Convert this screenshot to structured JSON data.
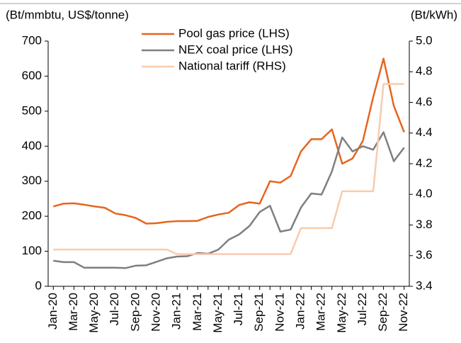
{
  "chart_data": {
    "type": "line",
    "y_label": "(Bt/mmbtu, US$/tonne)",
    "y2_label": "(Bt/kWh)",
    "categories": [
      "Jan-20",
      null,
      "Mar-20",
      null,
      "May-20",
      null,
      "Jul-20",
      null,
      "Sep-20",
      null,
      "Nov-20",
      null,
      "Jan-21",
      null,
      "Mar-21",
      null,
      "May-21",
      null,
      "Jul-21",
      null,
      "Sep-21",
      null,
      "Nov-21",
      null,
      "Jan-22",
      null,
      "Mar-22",
      null,
      "May-22",
      null,
      "Jul-22",
      null,
      "Sep-22",
      null,
      "Nov-22"
    ],
    "series": [
      {
        "name": "Pool gas price (LHS)",
        "color": "#e8641e",
        "axis": "y",
        "values": [
          228,
          236,
          237,
          233,
          228,
          224,
          208,
          203,
          195,
          179,
          180,
          184,
          186,
          186,
          187,
          198,
          205,
          210,
          232,
          240,
          236,
          300,
          296,
          315,
          385,
          420,
          420,
          448,
          350,
          365,
          415,
          540,
          650,
          515,
          440
        ]
      },
      {
        "name": "NEX coal price  (LHS)",
        "color": "#7f7f7f",
        "axis": "y",
        "values": [
          73,
          69,
          69,
          53,
          53,
          53,
          53,
          52,
          59,
          60,
          70,
          80,
          85,
          86,
          95,
          93,
          105,
          133,
          148,
          172,
          212,
          230,
          156,
          162,
          225,
          265,
          262,
          328,
          425,
          385,
          400,
          390,
          440,
          357,
          396
        ]
      },
      {
        "name": "National tariff  (RHS)",
        "color": "#f8cbad",
        "axis": "y2",
        "values": [
          3.64,
          3.64,
          3.64,
          3.64,
          3.64,
          3.64,
          3.64,
          3.64,
          3.64,
          3.64,
          3.64,
          3.64,
          3.61,
          3.61,
          3.61,
          3.61,
          3.61,
          3.61,
          3.61,
          3.61,
          3.61,
          3.61,
          3.61,
          3.61,
          3.78,
          3.78,
          3.78,
          3.78,
          4.02,
          4.02,
          4.02,
          4.02,
          4.72,
          4.72,
          4.72
        ]
      }
    ],
    "ylim": [
      0,
      700
    ],
    "yticks": [
      0,
      100,
      200,
      300,
      400,
      500,
      600,
      700
    ],
    "y2lim": [
      3.4,
      5.0
    ],
    "y2ticks": [
      3.4,
      3.6,
      3.8,
      {
        "value": 4.0,
        "label": "4.0"
      },
      4.2,
      4.4,
      4.6,
      4.8,
      {
        "value": 5.0,
        "label": "5.0"
      }
    ],
    "legend": "top"
  }
}
